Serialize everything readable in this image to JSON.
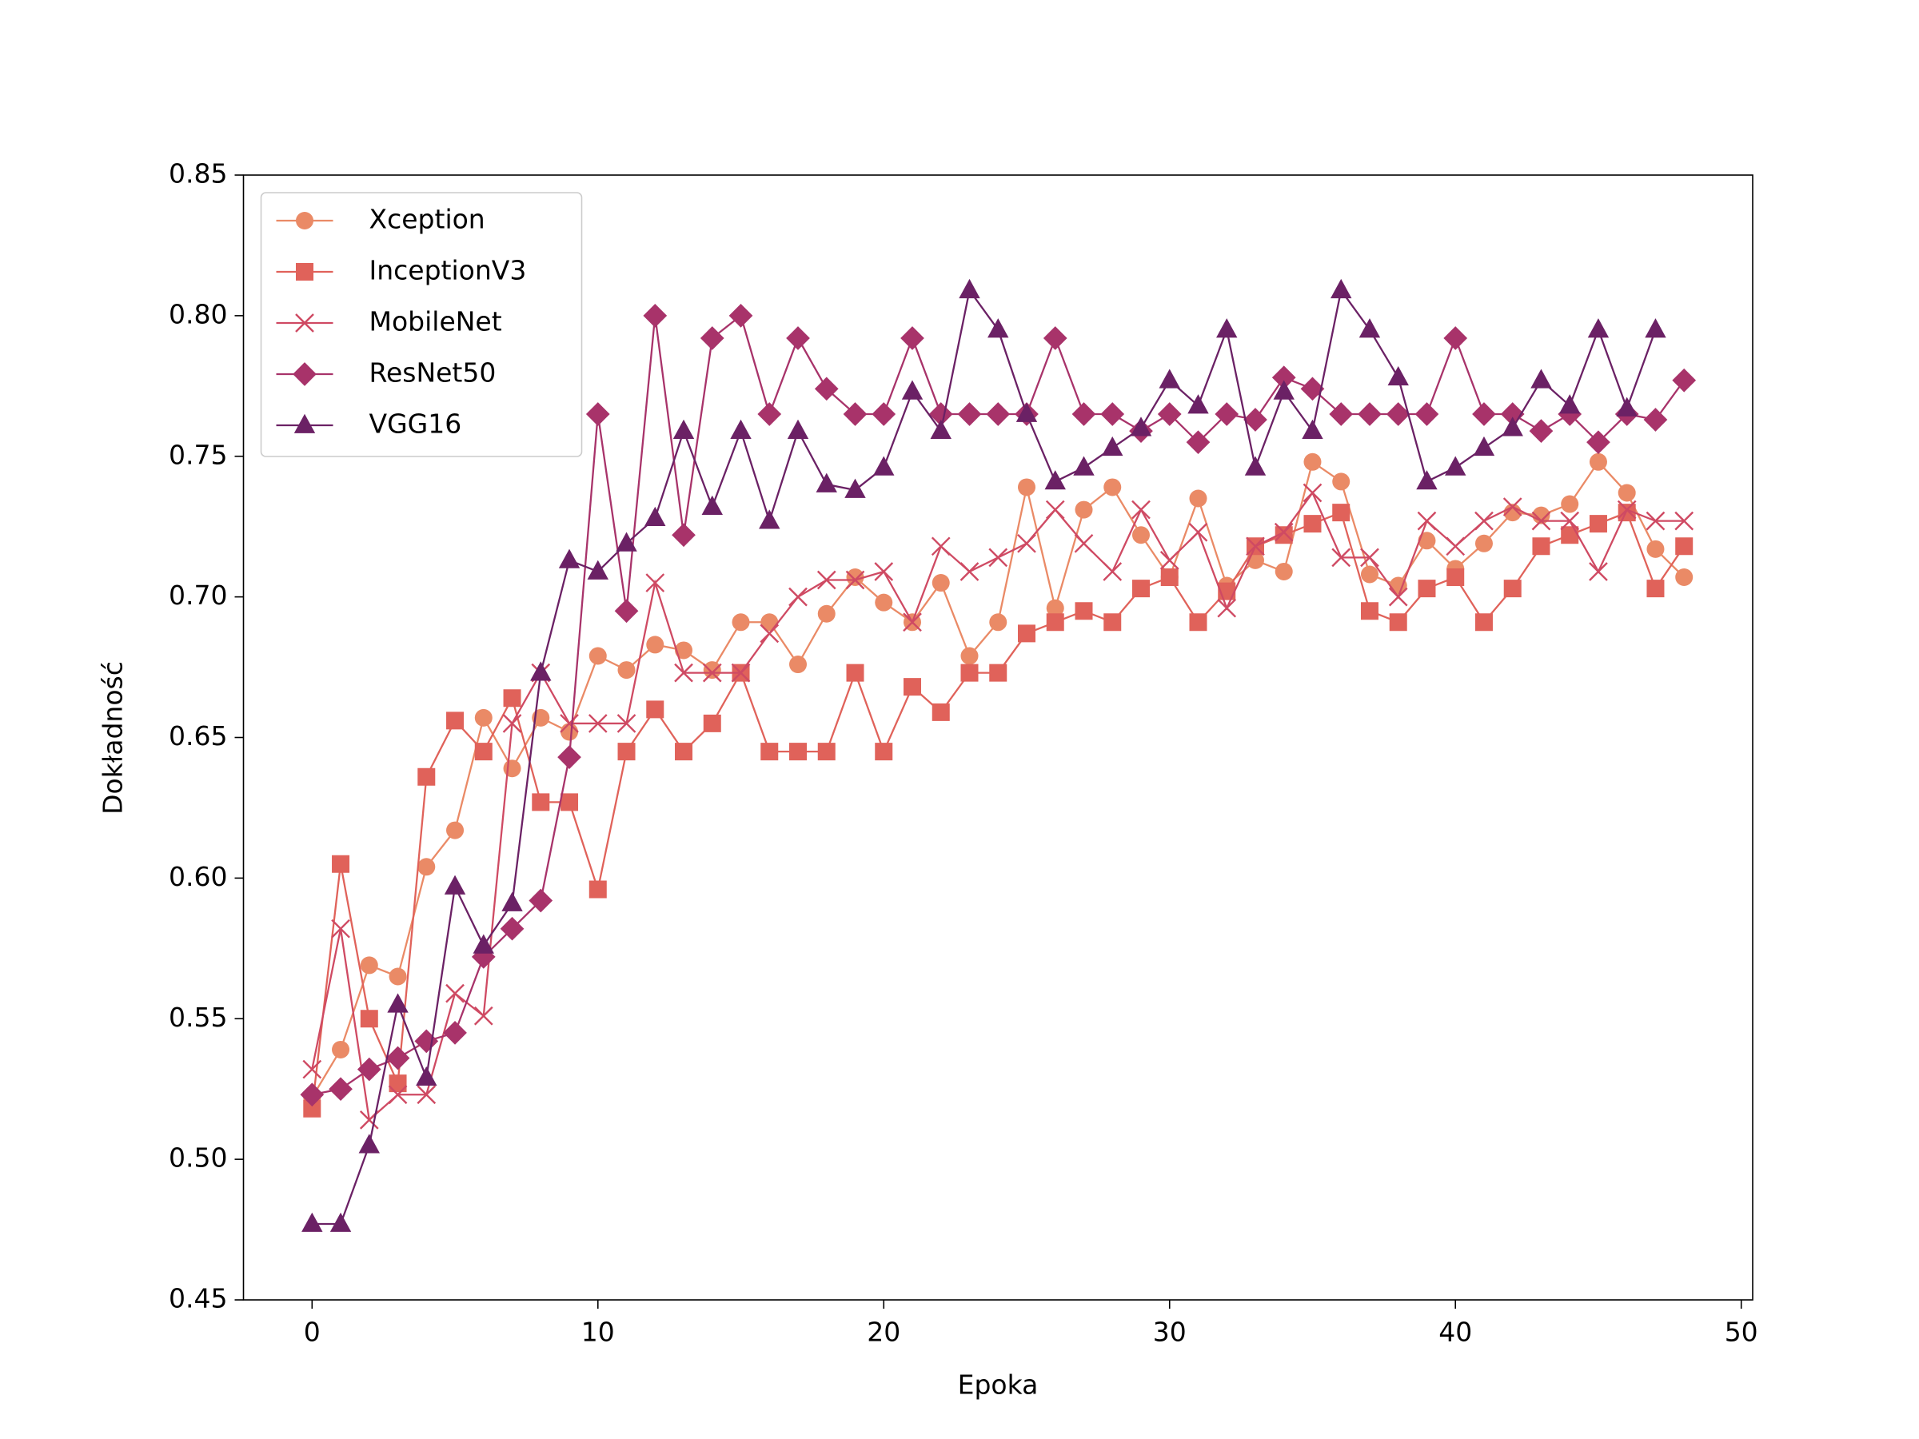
{
  "chart_data": {
    "type": "line",
    "xlabel": "Epoka",
    "ylabel": "Dokładność",
    "x": [
      0,
      1,
      2,
      3,
      4,
      5,
      6,
      7,
      8,
      9,
      10,
      11,
      12,
      13,
      14,
      15,
      16,
      17,
      18,
      19,
      20,
      21,
      22,
      23,
      24,
      25,
      26,
      27,
      28,
      29,
      30,
      31,
      32,
      33,
      34,
      35,
      36,
      37,
      38,
      39,
      40,
      41,
      42,
      43,
      44,
      45,
      46,
      47,
      48
    ],
    "xlim": [
      -2.4,
      50.4
    ],
    "xticks": [
      0,
      10,
      20,
      30,
      40,
      50
    ],
    "ylim": [
      0.45,
      0.85
    ],
    "yticks": [
      0.45,
      {
        "value": 0.5,
        "label": "0.50"
      },
      0.55,
      {
        "value": 0.6,
        "label": "0.60"
      },
      0.65,
      {
        "value": 0.7,
        "label": "0.70"
      },
      0.75,
      {
        "value": 0.8,
        "label": "0.80"
      },
      0.85
    ],
    "legend": "upper left",
    "series": [
      {
        "name": "Xception",
        "color": "#ea8a66",
        "marker": "circle",
        "values": [
          0.522,
          0.539,
          0.569,
          0.565,
          0.604,
          0.617,
          0.657,
          0.639,
          0.657,
          0.652,
          0.679,
          0.674,
          0.683,
          0.681,
          0.674,
          0.691,
          0.691,
          0.676,
          0.694,
          0.707,
          0.698,
          0.691,
          0.705,
          0.679,
          0.691,
          0.739,
          0.696,
          0.731,
          0.739,
          0.722,
          0.707,
          0.735,
          0.704,
          0.713,
          0.709,
          0.748,
          0.741,
          0.708,
          0.704,
          0.72,
          0.71,
          0.719,
          0.73,
          0.729,
          0.733,
          0.748,
          0.737,
          0.717,
          0.707
        ]
      },
      {
        "name": "InceptionV3",
        "color": "#e0625a",
        "marker": "square",
        "values": [
          0.518,
          0.605,
          0.55,
          0.527,
          0.636,
          0.656,
          0.645,
          0.664,
          0.627,
          0.627,
          0.596,
          0.645,
          0.66,
          0.645,
          0.655,
          0.673,
          0.645,
          0.645,
          0.645,
          0.673,
          0.645,
          0.668,
          0.659,
          0.673,
          0.673,
          0.687,
          0.691,
          0.695,
          0.691,
          0.703,
          0.707,
          0.691,
          0.702,
          0.718,
          0.722,
          0.726,
          0.73,
          0.695,
          0.691,
          0.703,
          0.707,
          0.691,
          0.703,
          0.718,
          0.722,
          0.726,
          0.73,
          0.703,
          0.718
        ]
      },
      {
        "name": "MobileNet",
        "color": "#cf4a63",
        "marker": "x",
        "values": [
          0.532,
          0.582,
          0.514,
          0.523,
          0.523,
          0.559,
          0.551,
          0.655,
          0.673,
          0.655,
          0.655,
          0.655,
          0.705,
          0.673,
          0.673,
          0.673,
          0.687,
          0.7,
          0.706,
          0.706,
          0.709,
          0.691,
          0.718,
          0.709,
          0.714,
          0.719,
          0.731,
          0.719,
          0.709,
          0.731,
          0.713,
          0.723,
          0.696,
          0.718,
          0.723,
          0.737,
          0.714,
          0.714,
          0.7,
          0.727,
          0.718,
          0.727,
          0.732,
          0.727,
          0.727,
          0.709,
          0.731,
          0.727,
          0.727
        ]
      },
      {
        "name": "ResNet50",
        "color": "#a8336a",
        "marker": "diamond",
        "values": [
          0.523,
          0.525,
          0.532,
          0.536,
          0.542,
          0.545,
          0.572,
          0.582,
          0.592,
          0.643,
          0.765,
          0.695,
          0.8,
          0.722,
          0.792,
          0.8,
          0.765,
          0.792,
          0.774,
          0.765,
          0.765,
          0.792,
          0.765,
          0.765,
          0.765,
          0.765,
          0.792,
          0.765,
          0.765,
          0.759,
          0.765,
          0.755,
          0.765,
          0.763,
          0.778,
          0.774,
          0.765,
          0.765,
          0.765,
          0.765,
          0.792,
          0.765,
          0.765,
          0.759,
          0.765,
          0.755,
          0.765,
          0.763,
          0.777
        ]
      },
      {
        "name": "VGG16",
        "color": "#6b2165",
        "marker": "triangle",
        "values": [
          0.477,
          0.477,
          0.505,
          0.555,
          0.529,
          0.597,
          0.576,
          0.591,
          0.673,
          0.713,
          0.709,
          0.719,
          0.728,
          0.759,
          0.732,
          0.759,
          0.727,
          0.759,
          0.74,
          0.738,
          0.746,
          0.773,
          0.759,
          0.809,
          0.795,
          0.765,
          0.741,
          0.746,
          0.753,
          0.76,
          0.777,
          0.768,
          0.795,
          0.746,
          0.773,
          0.759,
          0.809,
          0.795,
          0.778,
          0.741,
          0.746,
          0.753,
          0.76,
          0.777,
          0.768,
          0.795,
          0.767,
          0.795,
          null
        ]
      }
    ]
  }
}
